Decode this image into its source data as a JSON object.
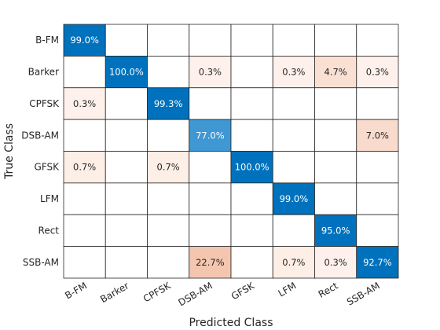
{
  "chart_data": {
    "type": "heatmap",
    "title": "",
    "xlabel": "Predicted Class",
    "ylabel": "True Class",
    "row_categories": [
      "B-FM",
      "Barker",
      "CPFSK",
      "DSB-AM",
      "GFSK",
      "LFM",
      "Rect",
      "SSB-AM"
    ],
    "col_categories": [
      "B-FM",
      "Barker",
      "CPFSK",
      "DSB-AM",
      "GFSK",
      "LFM",
      "Rect",
      "SSB-AM"
    ],
    "value_format": "percent_1dp",
    "values": [
      [
        99.0,
        null,
        null,
        null,
        null,
        null,
        null,
        null
      ],
      [
        null,
        100.0,
        null,
        0.3,
        null,
        0.3,
        4.7,
        0.3
      ],
      [
        0.3,
        null,
        99.3,
        null,
        null,
        null,
        null,
        null
      ],
      [
        null,
        null,
        null,
        77.0,
        null,
        null,
        null,
        7.0
      ],
      [
        0.7,
        null,
        0.7,
        null,
        100.0,
        null,
        null,
        null
      ],
      [
        null,
        null,
        null,
        null,
        null,
        99.0,
        null,
        null
      ],
      [
        null,
        null,
        null,
        null,
        null,
        null,
        95.0,
        null
      ],
      [
        null,
        null,
        null,
        22.7,
        null,
        0.7,
        0.3,
        92.7
      ]
    ],
    "colors": {
      "diagonal_high": "#0072bd",
      "diagonal_mid": "#3f97d3",
      "off_diagonal_max": "#f4c6b0",
      "off_diagonal_min": "#fff6f1",
      "empty_cell": "#ffffff",
      "grid_line": "#262626",
      "label_light": "#ffffff",
      "label_dark": "#262626"
    },
    "grid": true,
    "legend": "none"
  }
}
